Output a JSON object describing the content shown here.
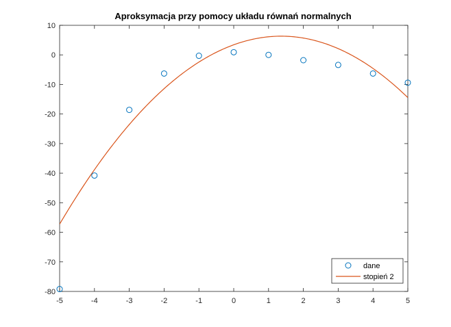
{
  "chart_data": {
    "type": "scatter",
    "title": "Aproksymacja przy pomocy układu równań normalnych",
    "xlabel": "",
    "ylabel": "",
    "xlim": [
      -5,
      5
    ],
    "ylim": [
      -80,
      10
    ],
    "xticks": [
      -5,
      -4,
      -3,
      -2,
      -1,
      0,
      1,
      2,
      3,
      4,
      5
    ],
    "yticks": [
      -80,
      -70,
      -60,
      -50,
      -40,
      -30,
      -20,
      -10,
      0,
      10
    ],
    "grid": false,
    "legend": "bottom-right",
    "series": [
      {
        "name": "dane",
        "kind": "markers",
        "marker": "circle",
        "color": "#0072BD",
        "x": [
          -5,
          -4,
          -3,
          -2,
          -1,
          0,
          1,
          2,
          3,
          4,
          5
        ],
        "y": [
          -79.2,
          -40.8,
          -18.6,
          -6.3,
          -0.3,
          0.9,
          0.0,
          -1.8,
          -3.4,
          -6.3,
          -9.4
        ]
      },
      {
        "name": "stopień 2",
        "kind": "line",
        "color": "#D95319",
        "coefficients": [
          -1.57,
          4.28,
          3.41
        ],
        "x_range": [
          -5,
          5
        ]
      }
    ]
  }
}
